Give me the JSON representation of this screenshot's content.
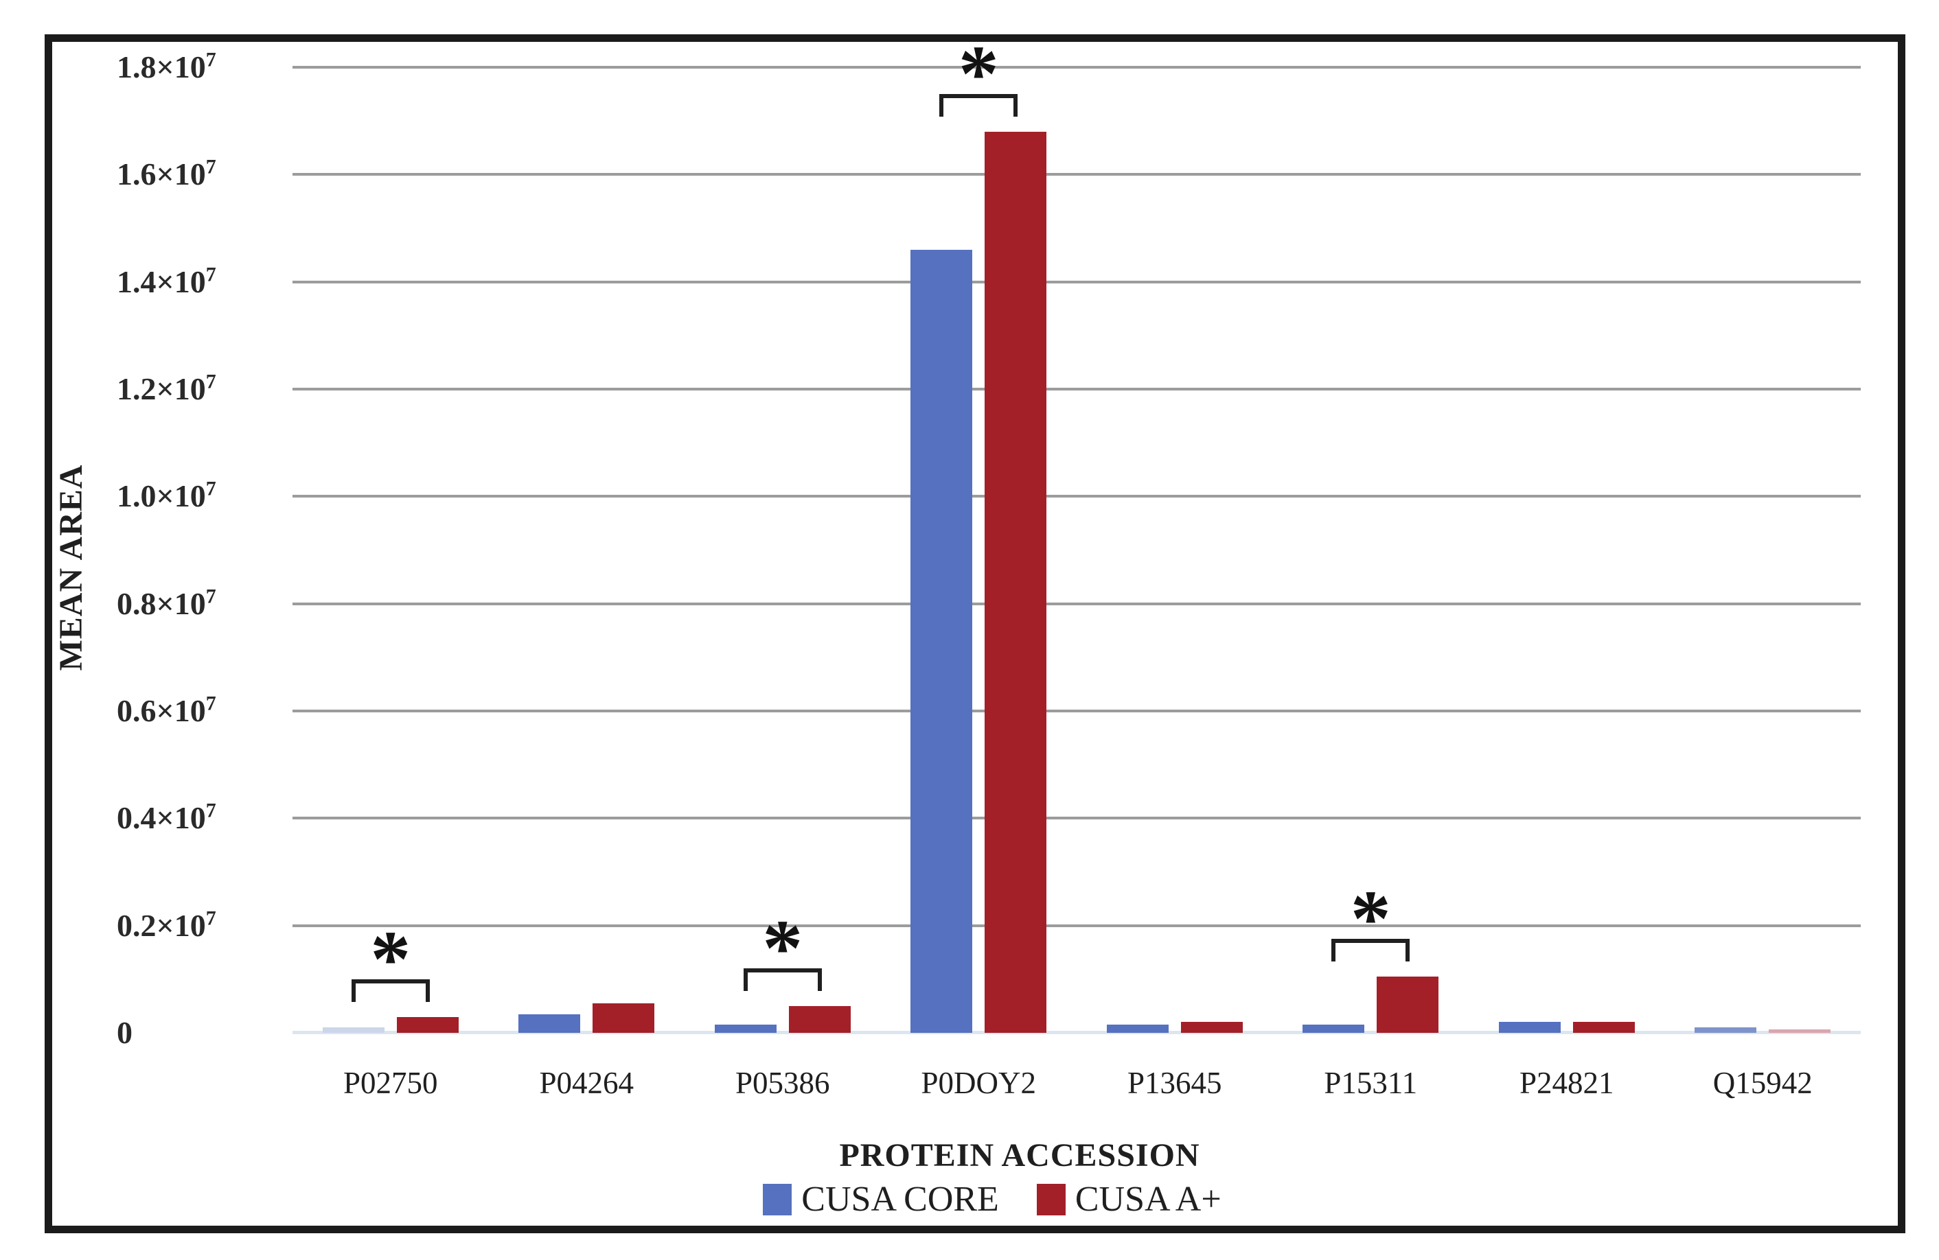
{
  "figure": {
    "frame_color": "#1b1b1b",
    "background_color": "#ffffff",
    "gridline_color": "#9c9c9c",
    "baseline_color": "#dce6f1",
    "text_color": "#1f1f1f"
  },
  "chart_data": {
    "type": "bar",
    "title": "",
    "xlabel": "PROTEIN ACCESSION",
    "ylabel": "MEAN AREA",
    "categories": [
      "P02750",
      "P04264",
      "P05386",
      "P0DOY2",
      "P13645",
      "P15311",
      "P24821",
      "Q15942"
    ],
    "series": [
      {
        "name": "CUSA CORE",
        "color": "#5671bf",
        "values": [
          100000,
          350000,
          150000,
          14600000,
          150000,
          150000,
          200000,
          100000
        ]
      },
      {
        "name": "CUSA A+",
        "color": "#a32029",
        "values": [
          300000,
          550000,
          500000,
          16800000,
          200000,
          1050000,
          200000,
          60000
        ]
      }
    ],
    "bar_color_overrides": [
      {
        "category": "P02750",
        "series": "CUSA CORE",
        "color": "#ccd6ea"
      },
      {
        "category": "Q15942",
        "series": "CUSA CORE",
        "color": "#7f93cb"
      },
      {
        "category": "Q15942",
        "series": "CUSA A+",
        "color": "#d9a6ad"
      }
    ],
    "significance": {
      "symbol": "*",
      "marked_categories": [
        "P02750",
        "P05386",
        "P0DOY2",
        "P15311"
      ]
    },
    "ylim": [
      0,
      18000000
    ],
    "yticks": [
      {
        "label": "1.8×10",
        "sup": "7",
        "value": 18000000
      },
      {
        "label": "1.6×10",
        "sup": "7",
        "value": 16000000
      },
      {
        "label": "1.4×10",
        "sup": "7",
        "value": 14000000
      },
      {
        "label": "1.2×10",
        "sup": "7",
        "value": 12000000
      },
      {
        "label": "1.0×10",
        "sup": "7",
        "value": 10000000
      },
      {
        "label": "0.8×10",
        "sup": "7",
        "value": 8000000
      },
      {
        "label": "0.6×10",
        "sup": "7",
        "value": 6000000
      },
      {
        "label": "0.4×10",
        "sup": "7",
        "value": 4000000
      },
      {
        "label": "0.2×10",
        "sup": "7",
        "value": 2000000
      },
      {
        "label": "0",
        "sup": "",
        "value": 0
      }
    ],
    "grid": "horizontal",
    "legend_position": "bottom"
  }
}
